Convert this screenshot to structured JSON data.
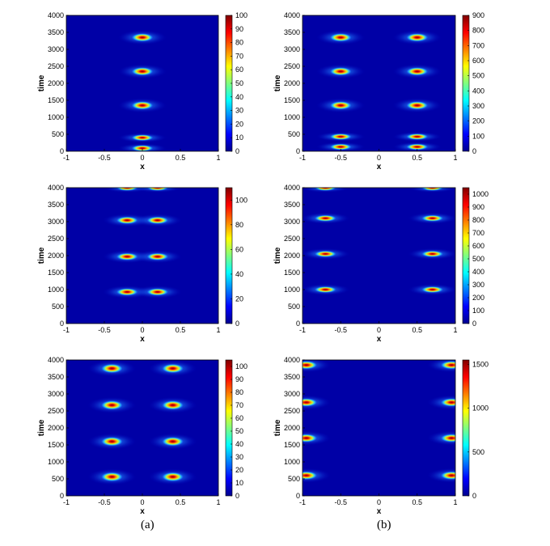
{
  "captions": [
    "(a)",
    "(b)"
  ],
  "chart_data": [
    {
      "type": "heatmap",
      "column": "a",
      "xlabel": "x",
      "ylabel": "time",
      "xlim": [
        -1,
        1
      ],
      "ylim": [
        0,
        4000
      ],
      "xticks": [
        "-1",
        "-0.5",
        "0",
        "0.5",
        "1"
      ],
      "yticks": [
        "0",
        "500",
        "1000",
        "1500",
        "2000",
        "2500",
        "3000",
        "3500",
        "4000"
      ],
      "colorbar_max": 100,
      "colorbar_ticks": [
        "0",
        "10",
        "20",
        "30",
        "40",
        "50",
        "60",
        "70",
        "80",
        "90",
        "100"
      ],
      "peaks": [
        {
          "x": 0,
          "t": 90,
          "dt": 25
        },
        {
          "x": 0,
          "t": 400,
          "dt": 25
        },
        {
          "x": 0,
          "t": 1350,
          "dt": 90
        },
        {
          "x": 0,
          "t": 2350,
          "dt": 90
        },
        {
          "x": 0,
          "t": 3350,
          "dt": 90
        }
      ]
    },
    {
      "type": "heatmap",
      "column": "b",
      "xlabel": "x",
      "ylabel": "time",
      "xlim": [
        -1,
        1
      ],
      "ylim": [
        0,
        4000
      ],
      "xticks": [
        "-1",
        "-0.5",
        "0",
        "0.5",
        "1"
      ],
      "yticks": [
        "0",
        "500",
        "1000",
        "1500",
        "2000",
        "2500",
        "3000",
        "3500",
        "4000"
      ],
      "colorbar_max": 900,
      "colorbar_ticks": [
        "0",
        "100",
        "200",
        "300",
        "400",
        "500",
        "600",
        "700",
        "800",
        "900"
      ],
      "peaks": [
        {
          "x": -0.5,
          "t": 130,
          "dt": 20
        },
        {
          "x": 0.5,
          "t": 130,
          "dt": 20
        },
        {
          "x": -0.5,
          "t": 430,
          "dt": 30
        },
        {
          "x": 0.5,
          "t": 430,
          "dt": 30
        },
        {
          "x": -0.5,
          "t": 1350,
          "dt": 90
        },
        {
          "x": 0.5,
          "t": 1350,
          "dt": 90
        },
        {
          "x": -0.5,
          "t": 2350,
          "dt": 90
        },
        {
          "x": 0.5,
          "t": 2350,
          "dt": 90
        },
        {
          "x": -0.5,
          "t": 3350,
          "dt": 90
        },
        {
          "x": 0.5,
          "t": 3350,
          "dt": 90
        }
      ]
    },
    {
      "type": "heatmap",
      "column": "a",
      "xlabel": "x",
      "ylabel": "time",
      "xlim": [
        -1,
        1
      ],
      "ylim": [
        0,
        4000
      ],
      "xticks": [
        "-1",
        "-0.5",
        "0",
        "0.5",
        "1"
      ],
      "yticks": [
        "0",
        "500",
        "1000",
        "1500",
        "2000",
        "2500",
        "3000",
        "3500",
        "4000"
      ],
      "colorbar_max": 110,
      "colorbar_ticks": [
        "0",
        "20",
        "40",
        "60",
        "80",
        "100"
      ],
      "peaks": [
        {
          "x": -0.2,
          "t": 930,
          "dt": 80
        },
        {
          "x": 0.2,
          "t": 930,
          "dt": 80
        },
        {
          "x": -0.2,
          "t": 1970,
          "dt": 80
        },
        {
          "x": 0.2,
          "t": 1970,
          "dt": 80
        },
        {
          "x": -0.2,
          "t": 3040,
          "dt": 80
        },
        {
          "x": 0.2,
          "t": 3040,
          "dt": 80
        },
        {
          "x": -0.2,
          "t": 4000,
          "dt": 40
        },
        {
          "x": 0.2,
          "t": 4000,
          "dt": 40
        }
      ]
    },
    {
      "type": "heatmap",
      "column": "b",
      "xlabel": "x",
      "ylabel": "time",
      "xlim": [
        -1,
        1
      ],
      "ylim": [
        0,
        4000
      ],
      "xticks": [
        "-1",
        "-0.5",
        "0",
        "0.5",
        "1"
      ],
      "yticks": [
        "0",
        "500",
        "1000",
        "1500",
        "2000",
        "2500",
        "3000",
        "3500",
        "4000"
      ],
      "colorbar_max": 1050,
      "colorbar_ticks": [
        "0",
        "100",
        "200",
        "300",
        "400",
        "500",
        "600",
        "700",
        "800",
        "900",
        "1000"
      ],
      "peaks": [
        {
          "x": -0.7,
          "t": 1000,
          "dt": 70
        },
        {
          "x": 0.7,
          "t": 1000,
          "dt": 70
        },
        {
          "x": -0.7,
          "t": 2050,
          "dt": 70
        },
        {
          "x": 0.7,
          "t": 2050,
          "dt": 70
        },
        {
          "x": -0.7,
          "t": 3100,
          "dt": 70
        },
        {
          "x": 0.7,
          "t": 3100,
          "dt": 70
        },
        {
          "x": -0.7,
          "t": 4000,
          "dt": 30
        },
        {
          "x": 0.7,
          "t": 4000,
          "dt": 30
        }
      ]
    },
    {
      "type": "heatmap",
      "column": "a",
      "xlabel": "x",
      "ylabel": "time",
      "xlim": [
        -1,
        1
      ],
      "ylim": [
        0,
        4000
      ],
      "xticks": [
        "-1",
        "-0.5",
        "0",
        "0.5",
        "1"
      ],
      "yticks": [
        "0",
        "500",
        "1000",
        "1500",
        "2000",
        "2500",
        "3000",
        "3500",
        "4000"
      ],
      "colorbar_max": 105,
      "colorbar_ticks": [
        "0",
        "10",
        "20",
        "30",
        "40",
        "50",
        "60",
        "70",
        "80",
        "90",
        "100"
      ],
      "peaks": [
        {
          "x": -0.4,
          "t": 560,
          "dt": 100
        },
        {
          "x": 0.4,
          "t": 560,
          "dt": 100
        },
        {
          "x": -0.4,
          "t": 1600,
          "dt": 100
        },
        {
          "x": 0.4,
          "t": 1600,
          "dt": 100
        },
        {
          "x": -0.4,
          "t": 2670,
          "dt": 100
        },
        {
          "x": 0.4,
          "t": 2670,
          "dt": 100
        },
        {
          "x": -0.4,
          "t": 3750,
          "dt": 100
        },
        {
          "x": 0.4,
          "t": 3750,
          "dt": 100
        }
      ]
    },
    {
      "type": "heatmap",
      "column": "b",
      "xlabel": "x",
      "ylabel": "time",
      "xlim": [
        -1,
        1
      ],
      "ylim": [
        0,
        4000
      ],
      "xticks": [
        "-1",
        "-0.5",
        "0",
        "0.5",
        "1"
      ],
      "yticks": [
        "0",
        "500",
        "1000",
        "1500",
        "2000",
        "2500",
        "3000",
        "3500",
        "4000"
      ],
      "colorbar_max": 1550,
      "colorbar_ticks": [
        "0",
        "500",
        "1000",
        "1500"
      ],
      "peaks": [
        {
          "x": -0.95,
          "t": 600,
          "dt": 90
        },
        {
          "x": 0.95,
          "t": 600,
          "dt": 90
        },
        {
          "x": -0.95,
          "t": 1700,
          "dt": 90
        },
        {
          "x": 0.95,
          "t": 1700,
          "dt": 90
        },
        {
          "x": -0.95,
          "t": 2750,
          "dt": 90
        },
        {
          "x": 0.95,
          "t": 2750,
          "dt": 90
        },
        {
          "x": -0.95,
          "t": 3850,
          "dt": 90
        },
        {
          "x": 0.95,
          "t": 3850,
          "dt": 90
        }
      ]
    }
  ]
}
